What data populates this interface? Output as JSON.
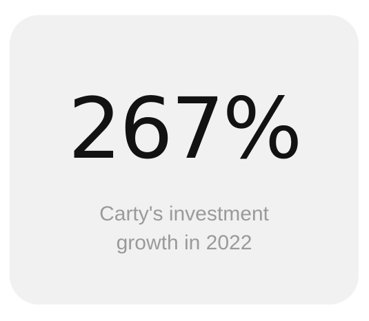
{
  "stat": {
    "value": "267%",
    "caption_line1": "Carty's investment",
    "caption_line2": "growth in 2022"
  },
  "colors": {
    "card_background": "#f1f1f1",
    "value_text": "#121212",
    "caption_text": "#9a9a9a"
  }
}
